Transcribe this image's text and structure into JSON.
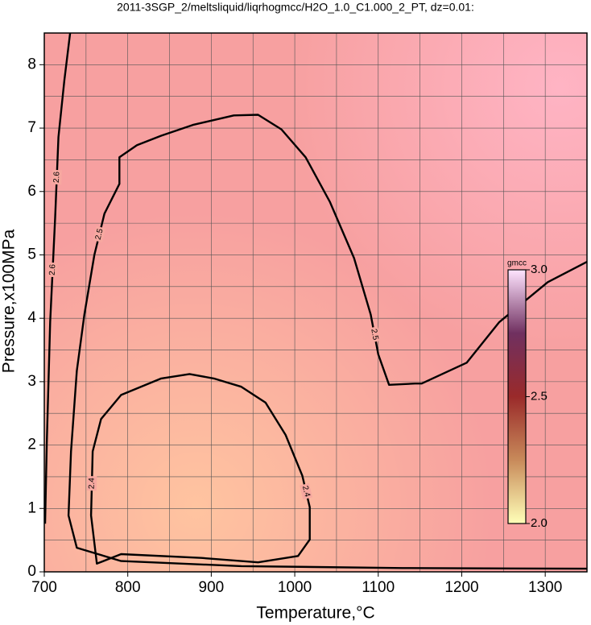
{
  "chart_data": {
    "type": "contour",
    "title": "2011-3SGP_2/meltsliquid/liqrhogmcc/H2O_1.0_C1.000_2_PT, dz=0.01:",
    "xlabel": "Temperature,°C",
    "ylabel": "Pressure,x100MPa",
    "xlim": [
      700,
      1350
    ],
    "ylim": [
      0,
      8.5
    ],
    "xticks": [
      700,
      800,
      900,
      1000,
      1100,
      1200,
      1300
    ],
    "xminorticks": [
      750,
      850,
      950,
      1050,
      1150,
      1250,
      1350
    ],
    "yticks": [
      0,
      1,
      2,
      3,
      4,
      5,
      6,
      7,
      8
    ],
    "yminorticks": [
      0.5,
      1.5,
      2.5,
      3.5,
      4.5,
      5.5,
      6.5,
      7.5,
      8.5
    ],
    "grid": true,
    "contours": [
      {
        "level": 2.4,
        "x": [
          763,
          756,
          758,
          768,
          792,
          840,
          874,
          903,
          936,
          965,
          989,
          1009,
          1018,
          1018,
          1004,
          956,
          888,
          792
        ],
        "y": [
          0.13,
          0.89,
          1.9,
          2.41,
          2.79,
          3.05,
          3.12,
          3.05,
          2.92,
          2.67,
          2.16,
          1.52,
          1.02,
          0.51,
          0.25,
          0.15,
          0.22,
          0.28
        ]
      },
      {
        "level": 2.5,
        "x": [
          1350,
          1129,
          936,
          792,
          739,
          729,
          732,
          739,
          748,
          760,
          772,
          790,
          790,
          811,
          840,
          878,
          927,
          956,
          984,
          1013,
          1042,
          1071,
          1091,
          1100,
          1113,
          1144,
          1152,
          1206,
          1245,
          1303,
          1350
        ],
        "y": [
          0.05,
          0.06,
          0.09,
          0.17,
          0.38,
          0.89,
          1.9,
          3.17,
          4.06,
          5.0,
          5.65,
          6.12,
          6.54,
          6.73,
          6.88,
          7.05,
          7.2,
          7.21,
          6.98,
          6.54,
          5.84,
          4.95,
          4.06,
          3.43,
          2.95,
          2.97,
          2.97,
          3.3,
          3.94,
          4.57,
          4.89
        ]
      },
      {
        "level": 2.6,
        "x": [
          731,
          724,
          717,
          713,
          707,
          703,
          701
        ],
        "y": [
          8.5,
          7.75,
          6.86,
          5.59,
          3.94,
          2.03,
          0.76
        ]
      }
    ],
    "colorbar": {
      "label": "gmcc",
      "lim": [
        2,
        3
      ],
      "ticks": [
        {
          "value": 2,
          "label": "2.0"
        },
        2.5,
        {
          "value": 3,
          "label": "3.0"
        }
      ],
      "colors": [
        "#ffffb8",
        "#c88a5a",
        "#9a2a2a",
        "#703060",
        "#ffe4ff"
      ]
    }
  }
}
